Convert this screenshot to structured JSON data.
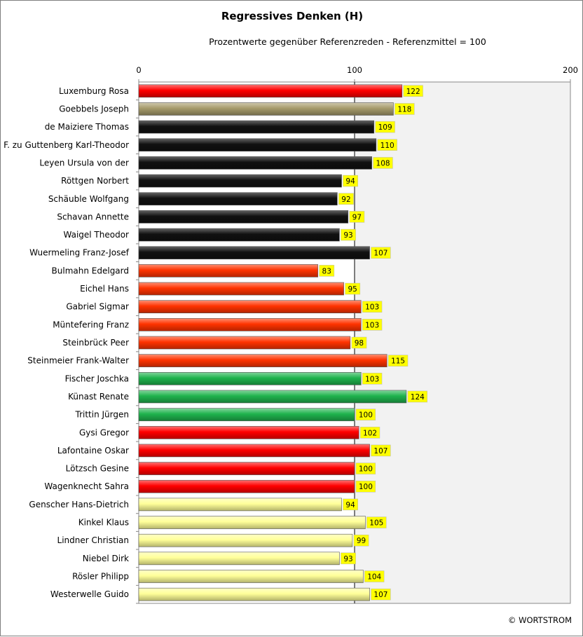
{
  "chart_data": {
    "type": "bar",
    "orientation": "horizontal",
    "title": "Regressives Denken (H)",
    "subtitle": "Prozentwerte  gegenüber Referenzreden - Referenzmittel = 100",
    "xlim": [
      0,
      200
    ],
    "xticks": [
      "0",
      "100",
      "200"
    ],
    "reference_value": 100,
    "shade_above_reference": "#f2f2f2",
    "label_bg_color": "#ffff00",
    "categories": [
      "Luxemburg Rosa",
      "Goebbels Joseph",
      "de Maiziere Thomas",
      "F. zu Guttenberg Karl-Theodor",
      "Leyen Ursula von der",
      "Röttgen Norbert",
      "Schäuble Wolfgang",
      "Schavan Annette",
      "Waigel Theodor",
      "Wuermeling Franz-Josef",
      "Bulmahn Edelgard",
      "Eichel Hans",
      "Gabriel Sigmar",
      "Müntefering Franz",
      "Steinbrück Peer",
      "Steinmeier Frank-Walter",
      "Fischer Joschka",
      "Künast Renate",
      "Trittin Jürgen",
      "Gysi Gregor",
      "Lafontaine Oskar",
      "Lötzsch Gesine",
      "Wagenknecht Sahra",
      "Genscher Hans-Dietrich",
      "Kinkel Klaus",
      "Lindner Christian",
      "Niebel Dirk",
      "Rösler Philipp",
      "Westerwelle Guido"
    ],
    "values": [
      122,
      118,
      109,
      110,
      108,
      94,
      92,
      97,
      93,
      107,
      83,
      95,
      103,
      103,
      98,
      115,
      103,
      124,
      100,
      102,
      107,
      100,
      100,
      94,
      105,
      99,
      93,
      104,
      107
    ],
    "colors": [
      "#ff0000",
      "#a69b6b",
      "#111111",
      "#111111",
      "#111111",
      "#111111",
      "#111111",
      "#111111",
      "#111111",
      "#111111",
      "#ff3300",
      "#ff3300",
      "#ff3300",
      "#ff3300",
      "#ff3300",
      "#ff3300",
      "#1fb34d",
      "#1fb34d",
      "#1fb34d",
      "#ff0000",
      "#ff0000",
      "#ff0000",
      "#ff0000",
      "#ffff99",
      "#ffff99",
      "#ffff99",
      "#ffff99",
      "#ffff99",
      "#ffff99"
    ],
    "grid": false,
    "legend": "none"
  },
  "footer": {
    "credit": "© WORTSTROM"
  }
}
